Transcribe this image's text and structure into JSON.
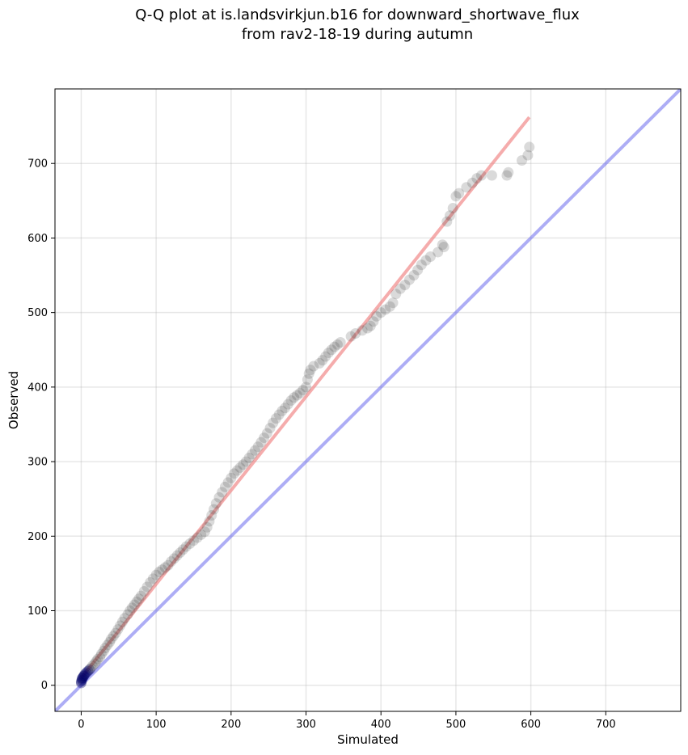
{
  "chart_data": {
    "type": "scatter",
    "title": "Q-Q plot at is.landsvirkjun.b16 for downward_shortwave_flux",
    "subtitle": "from rav2-18-19 during autumn",
    "xlabel": "Simulated",
    "ylabel": "Observed",
    "xlim": [
      -35,
      800
    ],
    "ylim": [
      -35,
      800
    ],
    "x_ticks": [
      0,
      100,
      200,
      300,
      400,
      500,
      600,
      700
    ],
    "y_ticks": [
      0,
      100,
      200,
      300,
      400,
      500,
      600,
      700
    ],
    "grid": true,
    "legend": "none",
    "colors": {
      "points": "#333333",
      "fit_line": "#f08080",
      "identity_line": "#7777ee",
      "low_points": "#000066"
    },
    "fit_line": {
      "x": [
        0,
        598
      ],
      "y": [
        10,
        762
      ]
    },
    "identity_line": {
      "x": [
        -35,
        800
      ],
      "y": [
        -35,
        800
      ]
    },
    "points": [
      [
        0,
        3
      ],
      [
        0,
        5
      ],
      [
        1,
        7
      ],
      [
        1,
        9
      ],
      [
        2,
        10
      ],
      [
        3,
        12
      ],
      [
        4,
        13
      ],
      [
        5,
        15
      ],
      [
        7,
        17
      ],
      [
        9,
        19
      ],
      [
        11,
        21
      ],
      [
        13,
        23
      ],
      [
        15,
        26
      ],
      [
        18,
        29
      ],
      [
        20,
        32
      ],
      [
        22,
        35
      ],
      [
        25,
        38
      ],
      [
        27,
        42
      ],
      [
        30,
        46
      ],
      [
        32,
        50
      ],
      [
        35,
        54
      ],
      [
        38,
        58
      ],
      [
        40,
        62
      ],
      [
        43,
        66
      ],
      [
        46,
        70
      ],
      [
        49,
        75
      ],
      [
        52,
        80
      ],
      [
        55,
        85
      ],
      [
        58,
        90
      ],
      [
        62,
        95
      ],
      [
        65,
        100
      ],
      [
        68,
        104
      ],
      [
        71,
        108
      ],
      [
        74,
        112
      ],
      [
        77,
        116
      ],
      [
        80,
        120
      ],
      [
        84,
        126
      ],
      [
        88,
        132
      ],
      [
        92,
        138
      ],
      [
        96,
        143
      ],
      [
        100,
        148
      ],
      [
        104,
        152
      ],
      [
        108,
        155
      ],
      [
        112,
        158
      ],
      [
        116,
        161
      ],
      [
        120,
        166
      ],
      [
        124,
        170
      ],
      [
        128,
        174
      ],
      [
        132,
        178
      ],
      [
        136,
        182
      ],
      [
        140,
        186
      ],
      [
        145,
        190
      ],
      [
        150,
        194
      ],
      [
        155,
        198
      ],
      [
        160,
        202
      ],
      [
        165,
        206
      ],
      [
        168,
        212
      ],
      [
        171,
        220
      ],
      [
        174,
        228
      ],
      [
        177,
        236
      ],
      [
        180,
        244
      ],
      [
        184,
        252
      ],
      [
        188,
        259
      ],
      [
        192,
        266
      ],
      [
        196,
        272
      ],
      [
        200,
        278
      ],
      [
        204,
        284
      ],
      [
        208,
        288
      ],
      [
        212,
        292
      ],
      [
        216,
        296
      ],
      [
        220,
        300
      ],
      [
        224,
        305
      ],
      [
        228,
        310
      ],
      [
        232,
        315
      ],
      [
        236,
        320
      ],
      [
        240,
        326
      ],
      [
        244,
        332
      ],
      [
        248,
        338
      ],
      [
        252,
        345
      ],
      [
        256,
        352
      ],
      [
        260,
        358
      ],
      [
        264,
        363
      ],
      [
        268,
        368
      ],
      [
        272,
        372
      ],
      [
        276,
        377
      ],
      [
        280,
        382
      ],
      [
        284,
        386
      ],
      [
        288,
        389
      ],
      [
        292,
        392
      ],
      [
        296,
        396
      ],
      [
        300,
        400
      ],
      [
        302,
        410
      ],
      [
        304,
        418
      ],
      [
        306,
        423
      ],
      [
        310,
        428
      ],
      [
        318,
        432
      ],
      [
        322,
        436
      ],
      [
        326,
        441
      ],
      [
        330,
        446
      ],
      [
        334,
        450
      ],
      [
        338,
        454
      ],
      [
        342,
        457
      ],
      [
        346,
        460
      ],
      [
        360,
        468
      ],
      [
        366,
        472
      ],
      [
        375,
        476
      ],
      [
        382,
        479
      ],
      [
        386,
        482
      ],
      [
        390,
        488
      ],
      [
        394,
        495
      ],
      [
        400,
        500
      ],
      [
        406,
        504
      ],
      [
        412,
        508
      ],
      [
        416,
        513
      ],
      [
        420,
        525
      ],
      [
        426,
        532
      ],
      [
        432,
        537
      ],
      [
        438,
        544
      ],
      [
        444,
        550
      ],
      [
        449,
        557
      ],
      [
        454,
        564
      ],
      [
        460,
        570
      ],
      [
        466,
        575
      ],
      [
        476,
        581
      ],
      [
        484,
        588
      ],
      [
        482,
        591
      ],
      [
        488,
        622
      ],
      [
        492,
        630
      ],
      [
        496,
        640
      ],
      [
        500,
        656
      ],
      [
        504,
        660
      ],
      [
        514,
        668
      ],
      [
        522,
        674
      ],
      [
        528,
        680
      ],
      [
        534,
        684
      ],
      [
        548,
        684
      ],
      [
        568,
        684
      ],
      [
        570,
        688
      ],
      [
        588,
        704
      ],
      [
        596,
        711
      ],
      [
        598,
        722
      ]
    ]
  }
}
